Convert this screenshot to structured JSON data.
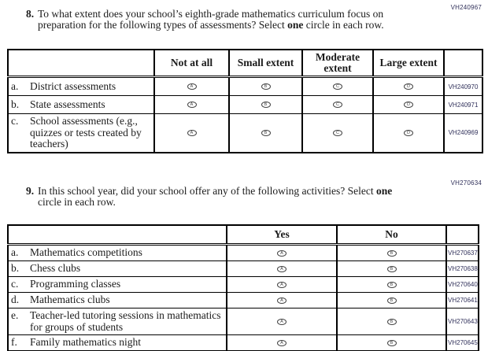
{
  "colors": {
    "text": "#1b1b1b",
    "border": "#000000",
    "code_text": "#30305a",
    "oval_outline": "#444444"
  },
  "questions": {
    "q8": {
      "code": "VH240967",
      "number": "8.",
      "lines": [
        [
          {
            "t": "To what extent does your school’s eighth-grade mathematics curriculum focus on",
            "b": false
          }
        ],
        [
          {
            "t": "preparation for the following types of assessments? Select ",
            "b": false
          },
          {
            "t": "one",
            "b": true
          },
          {
            "t": " circle in each row.",
            "b": false
          }
        ]
      ],
      "table": {
        "headers": [
          "Not at all",
          "Small extent",
          "Moderate extent",
          "Large extent"
        ],
        "options": [
          "A",
          "B",
          "C",
          "D"
        ],
        "rows": [
          {
            "letter": "a.",
            "label": "District assessments",
            "code": "VH240970"
          },
          {
            "letter": "b.",
            "label": "State assessments",
            "code": "VH240971"
          },
          {
            "letter": "c.",
            "label": "School assessments (e.g., quizzes or tests created by teachers)",
            "code": "VH240969"
          }
        ]
      }
    },
    "q9": {
      "code": "VH270634",
      "number": "9.",
      "lines": [
        [
          {
            "t": "In this school year, did your school offer any of the following activities? Select ",
            "b": false
          },
          {
            "t": "one",
            "b": true
          }
        ],
        [
          {
            "t": "circle in each row.",
            "b": false
          }
        ]
      ],
      "table": {
        "headers": [
          "Yes",
          "No"
        ],
        "options": [
          "A",
          "B"
        ],
        "rows": [
          {
            "letter": "a.",
            "label": "Mathematics competitions",
            "code": "VH270637"
          },
          {
            "letter": "b.",
            "label": "Chess clubs",
            "code": "VH270638"
          },
          {
            "letter": "c.",
            "label": "Programming classes",
            "code": "VH270640"
          },
          {
            "letter": "d.",
            "label": "Mathematics clubs",
            "code": "VH270641"
          },
          {
            "letter": "e.",
            "label": "Teacher-led tutoring sessions in mathematics for groups of students",
            "code": "VH270643"
          },
          {
            "letter": "f.",
            "label": "Family mathematics night",
            "code": "VH270645"
          }
        ]
      }
    }
  }
}
